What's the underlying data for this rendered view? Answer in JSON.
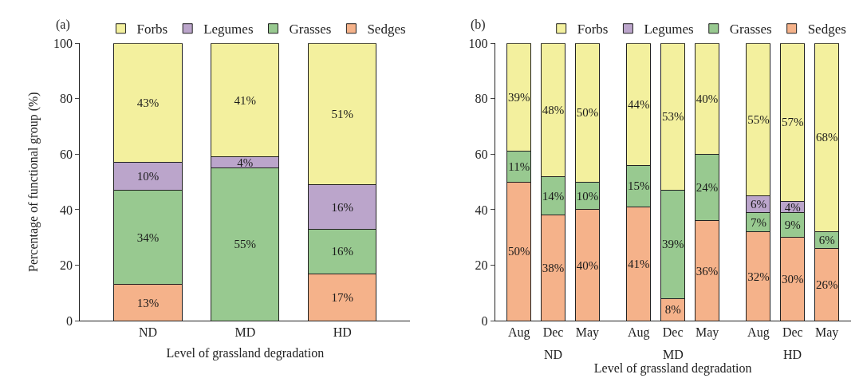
{
  "chart_data": [
    {
      "type": "bar",
      "title": "(a)",
      "xlabel": "Level of grassland degradation",
      "ylabel": "Percentage of functional group (%)",
      "categories": [
        "ND",
        "MD",
        "HD"
      ],
      "stacked": true,
      "ylim": [
        0,
        100
      ],
      "yticks": [
        0,
        20,
        40,
        60,
        80,
        100
      ],
      "legend": "top",
      "series": [
        {
          "name": "Sedges",
          "color": "#f5b28a",
          "values": [
            13,
            0,
            17
          ],
          "value_labels": [
            "13%",
            null,
            "17%"
          ]
        },
        {
          "name": "Grasses",
          "color": "#98c990",
          "values": [
            34,
            55,
            16
          ],
          "value_labels": [
            "34%",
            "55%",
            "16%"
          ]
        },
        {
          "name": "Legumes",
          "color": "#bba5cb",
          "values": [
            10,
            4,
            16
          ],
          "value_labels": [
            "10%",
            "4%",
            "16%"
          ]
        },
        {
          "name": "Forbs",
          "color": "#f3f09e",
          "values": [
            43,
            41,
            51
          ],
          "value_labels": [
            "43%",
            "41%",
            "51%"
          ]
        }
      ]
    },
    {
      "type": "bar",
      "title": "(b)",
      "xlabel": "Level of grassland degradation",
      "categories": [
        "Aug",
        "Dec",
        "May",
        "Aug",
        "Dec",
        "May",
        "Aug",
        "Dec",
        "May"
      ],
      "annotations": [
        "ND",
        "MD",
        "HD"
      ],
      "stacked": true,
      "ylim": [
        0,
        100
      ],
      "yticks": [
        0,
        20,
        40,
        60,
        80,
        100
      ],
      "legend": "top",
      "series": [
        {
          "name": "Sedges",
          "color": "#f5b28a",
          "values": [
            50,
            38,
            40,
            41,
            8,
            36,
            32,
            30,
            26
          ],
          "value_labels": [
            "50%",
            "38%",
            "40%",
            "41%",
            "8%",
            "36%",
            "32%",
            "30%",
            "26%"
          ]
        },
        {
          "name": "Grasses",
          "color": "#98c990",
          "values": [
            11,
            14,
            10,
            15,
            39,
            24,
            7,
            9,
            6
          ],
          "value_labels": [
            "11%",
            "14%",
            "10%",
            "15%",
            "39%",
            "24%",
            "7%",
            "9%",
            "6%"
          ]
        },
        {
          "name": "Legumes",
          "color": "#bba5cb",
          "values": [
            0,
            0,
            0,
            0,
            0,
            0,
            6,
            4,
            0
          ],
          "value_labels": [
            null,
            null,
            null,
            null,
            null,
            null,
            "6%",
            "4%",
            null
          ]
        },
        {
          "name": "Forbs",
          "color": "#f3f09e",
          "values": [
            39,
            48,
            50,
            44,
            53,
            40,
            55,
            57,
            68
          ],
          "value_labels": [
            "39%",
            "48%",
            "50%",
            "44%",
            "53%",
            "40%",
            "55%",
            "57%",
            "68%"
          ]
        }
      ]
    }
  ]
}
